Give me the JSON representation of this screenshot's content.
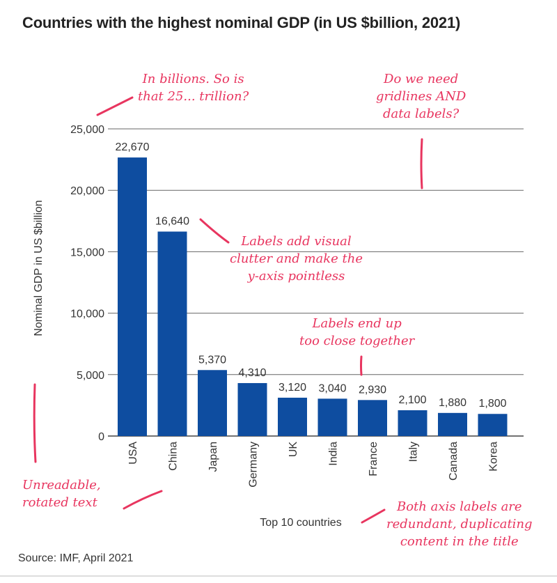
{
  "chart_data": {
    "type": "bar",
    "title": "Countries with the highest nominal GDP (in US $billion, 2021)",
    "xlabel": "Top 10 countries",
    "ylabel": "Nominal GDP in US $billion",
    "categories": [
      "USA",
      "China",
      "Japan",
      "Germany",
      "UK",
      "India",
      "France",
      "Italy",
      "Canada",
      "Korea"
    ],
    "values": [
      22670,
      16640,
      5370,
      4310,
      3120,
      3040,
      2930,
      2100,
      1880,
      1800
    ],
    "data_labels": [
      "22,670",
      "16,640",
      "5,370",
      "4,310",
      "3,120",
      "3,040",
      "2,930",
      "2,100",
      "1,880",
      "1,800"
    ],
    "ylim": [
      0,
      25000
    ],
    "yticks": [
      0,
      5000,
      10000,
      15000,
      20000,
      25000
    ],
    "ytick_labels": [
      "0",
      "5,000",
      "10,000",
      "15,000",
      "20,000",
      "25,000"
    ],
    "grid": true,
    "bar_color": "#0e4da0",
    "source": "Source: IMF, April 2021"
  },
  "annotations": {
    "color": "#e8355f",
    "billions_note": [
      "In billions. So is",
      "that 25... trillion?"
    ],
    "gridlines_note": [
      "Do we need",
      "gridlines AND",
      "data labels?"
    ],
    "clutter_note": [
      "Labels add visual",
      "clutter and make the",
      "y-axis pointless"
    ],
    "close_note": [
      "Labels end up",
      "too close together"
    ],
    "rotated_note": [
      "Unreadable,",
      "rotated text"
    ],
    "redundant_note": [
      "Both axis labels are",
      "redundant, duplicating",
      "content in the title"
    ]
  }
}
